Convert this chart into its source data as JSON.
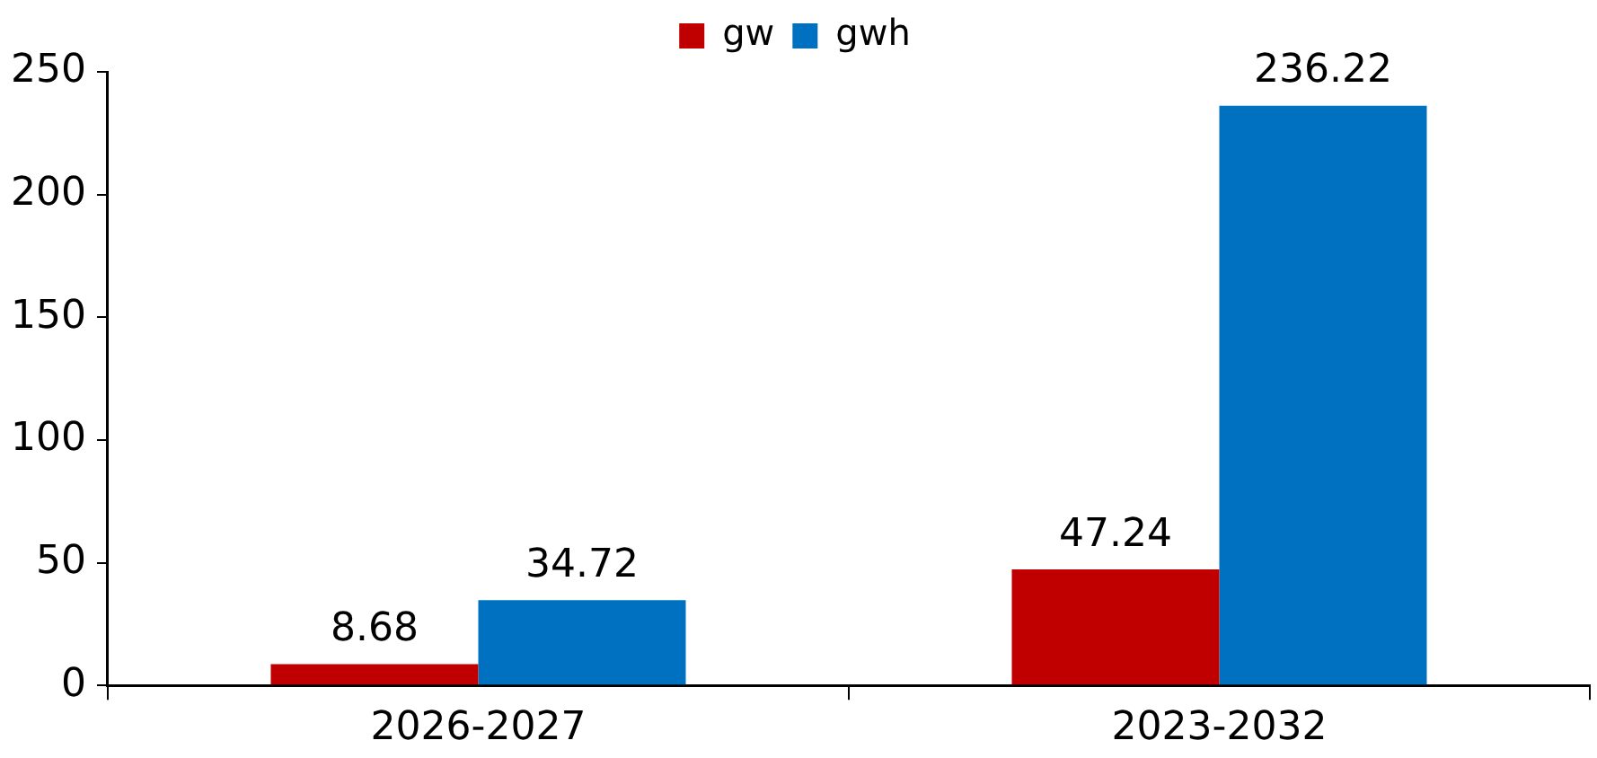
{
  "chart_data": {
    "type": "bar",
    "categories": [
      "2026-2027",
      "2023-2032"
    ],
    "series": [
      {
        "name": "gw",
        "color": "#c00000",
        "values": [
          8.68,
          47.24
        ]
      },
      {
        "name": "gwh",
        "color": "#0070c0",
        "values": [
          34.72,
          236.22
        ]
      }
    ],
    "ylim": [
      0,
      250
    ],
    "yticks": [
      0,
      50,
      100,
      150,
      200,
      250
    ],
    "grid": false,
    "legend": "top",
    "data_labels": true
  }
}
